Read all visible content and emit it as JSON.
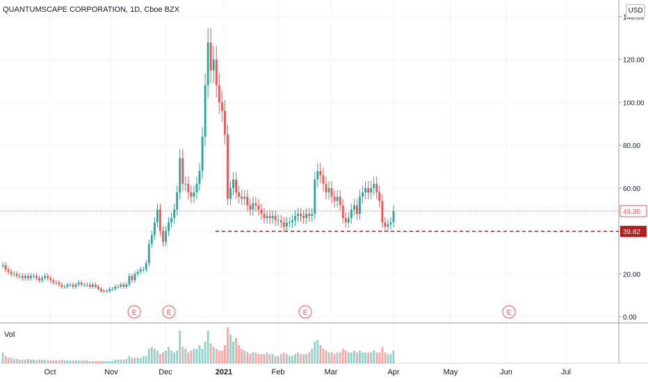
{
  "header": {
    "symbol_title": "QUANTUMSCAPE CORPORATION, 1D, Cboe BZX",
    "currency": "USD"
  },
  "volume_pane": {
    "label": "Vol"
  },
  "colors": {
    "up": "#26a69a",
    "down": "#ef5350",
    "grid": "#f0f3fa",
    "axis_text": "#131722",
    "last_price_label": "#ef5350",
    "support_line": "#b71c1c"
  },
  "chart_data": {
    "type": "candlestick",
    "symbol": "QUANTUMSCAPE CORPORATION",
    "interval": "1D",
    "exchange": "Cboe BZX",
    "currency": "USD",
    "y_axis": {
      "ticks": [
        "0.00",
        "20.00",
        "40.00",
        "60.00",
        "80.00",
        "100.00",
        "120.00",
        "140.00"
      ],
      "range": [
        -2,
        140
      ]
    },
    "x_axis": {
      "ticks": [
        "Oct",
        "Nov",
        "Dec",
        "2021",
        "Feb",
        "Mar",
        "Apr",
        "May",
        "Jun",
        "Jul"
      ]
    },
    "price_labels": [
      {
        "value": "49.30",
        "kind": "last-price"
      },
      {
        "value": "39.82",
        "kind": "horizontal-line"
      }
    ],
    "earnings_markers": [
      "E",
      "E",
      "E",
      "E"
    ],
    "closes_approx": [
      24,
      22,
      21,
      20,
      20,
      19,
      19,
      18,
      19,
      18,
      19,
      19,
      18,
      17,
      18,
      19,
      18,
      17,
      16,
      16,
      15,
      14,
      14,
      15,
      15,
      14,
      15,
      16,
      15,
      15,
      15,
      14,
      15,
      14,
      13,
      12,
      12,
      12,
      13,
      13,
      14,
      14,
      15,
      14,
      15,
      19,
      17,
      20,
      21,
      22,
      22,
      25,
      34,
      38,
      44,
      50,
      40,
      35,
      40,
      44,
      46,
      50,
      58,
      74,
      62,
      62,
      58,
      56,
      58,
      62,
      68,
      84,
      108,
      128,
      115,
      120,
      108,
      100,
      96,
      85,
      55,
      60,
      64,
      58,
      56,
      55,
      56,
      52,
      50,
      53,
      52,
      50,
      48,
      46,
      47,
      46,
      47,
      45,
      45,
      44,
      42,
      44,
      44,
      45,
      47,
      48,
      47,
      46,
      48,
      47,
      48,
      64,
      68,
      66,
      62,
      58,
      60,
      56,
      54,
      56,
      52,
      46,
      44,
      46,
      50,
      52,
      48,
      56,
      58,
      60,
      58,
      60,
      62,
      58,
      54,
      44,
      42,
      43,
      44,
      49.3
    ],
    "volume_relative": [
      0.3,
      0.2,
      0.15,
      0.15,
      0.12,
      0.12,
      0.1,
      0.1,
      0.1,
      0.12,
      0.1,
      0.1,
      0.08,
      0.1,
      0.1,
      0.1,
      0.08,
      0.08,
      0.08,
      0.08,
      0.08,
      0.1,
      0.08,
      0.08,
      0.08,
      0.08,
      0.08,
      0.08,
      0.08,
      0.08,
      0.08,
      0.06,
      0.06,
      0.06,
      0.06,
      0.06,
      0.06,
      0.06,
      0.06,
      0.06,
      0.1,
      0.1,
      0.1,
      0.1,
      0.12,
      0.2,
      0.15,
      0.15,
      0.15,
      0.15,
      0.2,
      0.2,
      0.4,
      0.45,
      0.4,
      0.35,
      0.25,
      0.3,
      0.35,
      0.45,
      0.35,
      0.3,
      0.35,
      0.9,
      0.45,
      0.4,
      0.3,
      0.35,
      0.4,
      0.4,
      0.5,
      0.4,
      0.6,
      0.9,
      0.55,
      0.45,
      0.4,
      0.35,
      0.35,
      0.5,
      1.0,
      0.8,
      0.6,
      0.7,
      0.5,
      0.4,
      0.35,
      0.3,
      0.25,
      0.3,
      0.3,
      0.25,
      0.25,
      0.25,
      0.3,
      0.25,
      0.25,
      0.2,
      0.2,
      0.25,
      0.3,
      0.25,
      0.2,
      0.2,
      0.25,
      0.3,
      0.25,
      0.25,
      0.25,
      0.3,
      0.4,
      0.6,
      0.65,
      0.5,
      0.4,
      0.35,
      0.3,
      0.3,
      0.25,
      0.3,
      0.3,
      0.4,
      0.35,
      0.3,
      0.3,
      0.35,
      0.3,
      0.35,
      0.3,
      0.3,
      0.3,
      0.3,
      0.35,
      0.3,
      0.3,
      0.45,
      0.3,
      0.25,
      0.25,
      0.35
    ]
  }
}
